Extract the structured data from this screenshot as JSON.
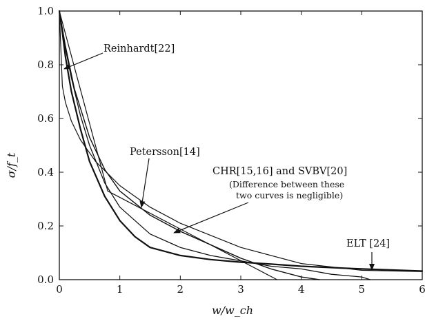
{
  "chart_data": {
    "type": "line",
    "title": "",
    "xlabel": "w/w_ch",
    "ylabel": "σ/f_t",
    "xlim": [
      0,
      6
    ],
    "ylim": [
      0,
      1
    ],
    "x_ticks": [
      "0",
      "1",
      "2",
      "3",
      "4",
      "5",
      "6"
    ],
    "y_ticks": [
      "0.0",
      "0.2",
      "0.4",
      "0.6",
      "0.8",
      "1.0"
    ],
    "grid": false,
    "series": [
      {
        "name": "Reinhardt[22]",
        "x": [
          0,
          0.1,
          0.2,
          0.35,
          0.5,
          0.75,
          1.0,
          1.5,
          2.0,
          2.5,
          3.0,
          3.5,
          4.0,
          4.5,
          5.0,
          5.14
        ],
        "y": [
          1.0,
          0.86,
          0.75,
          0.61,
          0.5,
          0.36,
          0.27,
          0.17,
          0.12,
          0.09,
          0.07,
          0.05,
          0.04,
          0.02,
          0.01,
          0.0
        ]
      },
      {
        "name": "Petersson[14]",
        "x": [
          0,
          0.8,
          3.6
        ],
        "y": [
          1.0,
          0.33,
          0.0
        ]
      },
      {
        "name": "CHR[15,16] and SVBV[20]",
        "x": [
          0,
          0.1,
          0.25,
          0.5,
          0.75,
          1.0,
          1.5,
          2.0,
          2.5,
          3.0,
          3.5,
          4.0,
          4.3
        ],
        "y": [
          1.0,
          0.87,
          0.71,
          0.53,
          0.41,
          0.33,
          0.24,
          0.18,
          0.13,
          0.08,
          0.04,
          0.01,
          0.0
        ]
      },
      {
        "name": "ELT [24]",
        "x": [
          0,
          0.05,
          0.1,
          0.2,
          0.35,
          0.5,
          0.75,
          1.0,
          1.25,
          1.5,
          2.0,
          2.5,
          3.0,
          3.5,
          4.0,
          5.0,
          6.0
        ],
        "y": [
          1.0,
          0.92,
          0.83,
          0.7,
          0.56,
          0.44,
          0.31,
          0.22,
          0.16,
          0.12,
          0.09,
          0.075,
          0.065,
          0.058,
          0.05,
          0.04,
          0.032
        ]
      },
      {
        "name": "",
        "x": [
          0,
          0.05,
          0.1,
          0.2,
          0.35,
          0.6,
          1.0,
          1.5,
          2.0,
          3.0,
          4.0,
          5.0,
          6.0
        ],
        "y": [
          1.0,
          0.72,
          0.66,
          0.59,
          0.52,
          0.44,
          0.35,
          0.27,
          0.21,
          0.12,
          0.06,
          0.035,
          0.03
        ]
      }
    ],
    "annotations": [
      {
        "id": "reinhardt",
        "text": "Reinhardt[22]"
      },
      {
        "id": "petersson",
        "text": "Petersson[14]"
      },
      {
        "id": "chr",
        "text": "CHR[15,16] and SVBV[20]"
      },
      {
        "id": "chr_note_1",
        "text": "(Difference between these"
      },
      {
        "id": "chr_note_2",
        "text": "two curves is negligible)"
      },
      {
        "id": "elt",
        "text": "ELT [24]"
      }
    ]
  }
}
